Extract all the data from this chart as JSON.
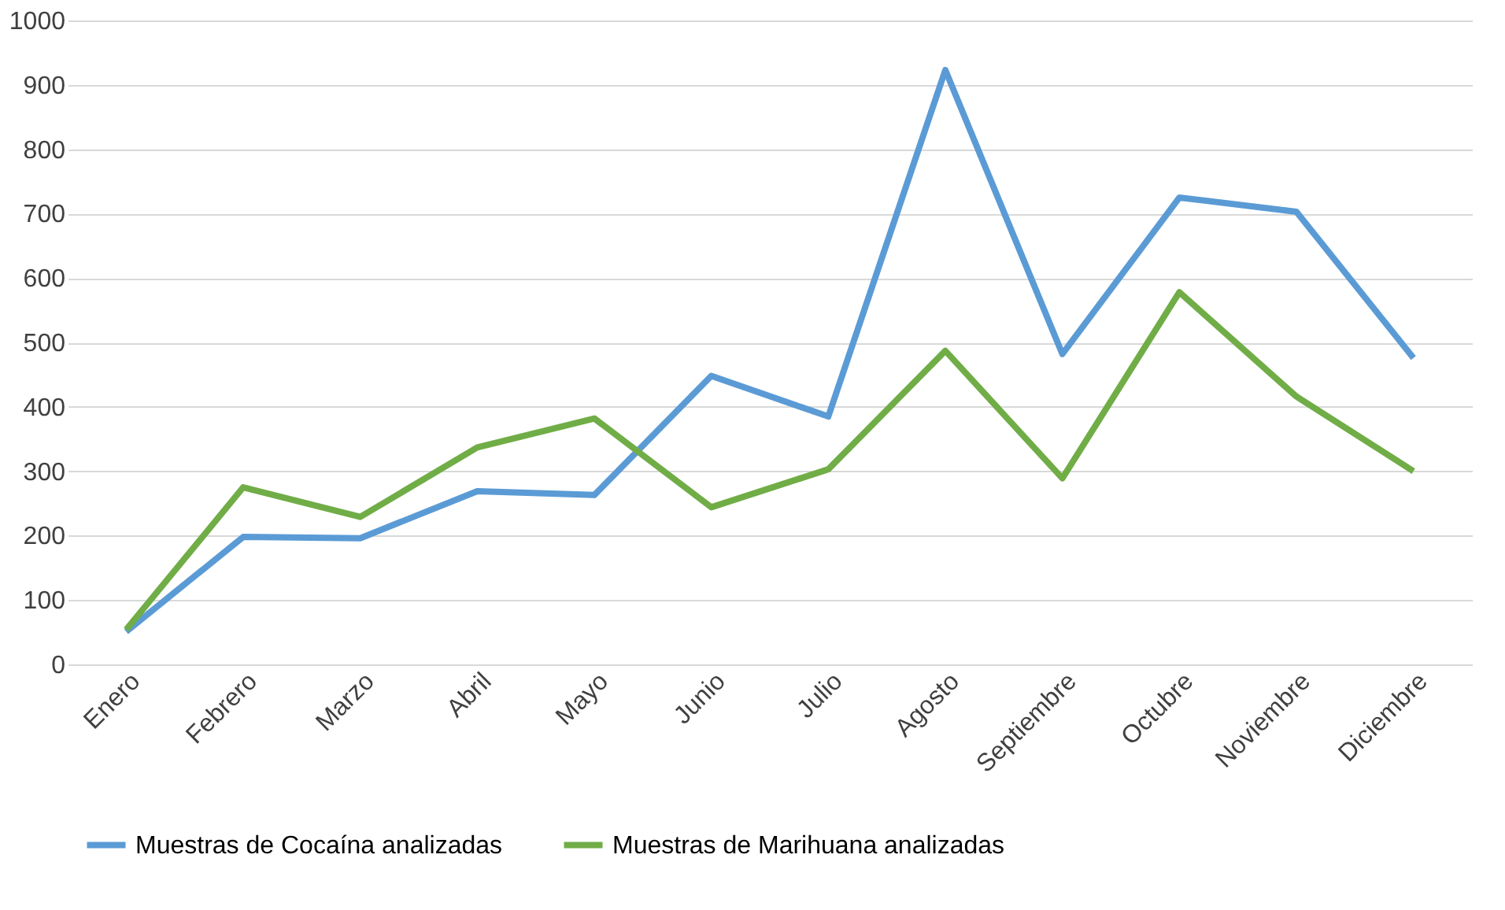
{
  "chart_data": {
    "type": "line",
    "categories": [
      "Enero",
      "Febrero",
      "Marzo",
      "Abril",
      "Mayo",
      "Junio",
      "Julio",
      "Agosto",
      "Septiembre",
      "Octubre",
      "Noviembre",
      "Diciembre"
    ],
    "series": [
      {
        "name": "Muestras de Cocaína analizadas",
        "color": "#5b9bd5",
        "values": [
          51,
          198,
          196,
          269,
          263,
          448,
          385,
          923,
          482,
          725,
          703,
          476
        ]
      },
      {
        "name": "Muestras de Marihuana analizadas",
        "color": "#70ad47",
        "values": [
          54,
          275,
          229,
          337,
          382,
          244,
          303,
          487,
          289,
          578,
          416,
          300
        ]
      }
    ],
    "ylim": [
      0,
      1000
    ],
    "yticks": [
      0,
      100,
      200,
      300,
      400,
      500,
      600,
      700,
      800,
      900,
      1000
    ],
    "grid": "y",
    "legend": "bottom",
    "marker": "none",
    "line_style": "solid"
  }
}
